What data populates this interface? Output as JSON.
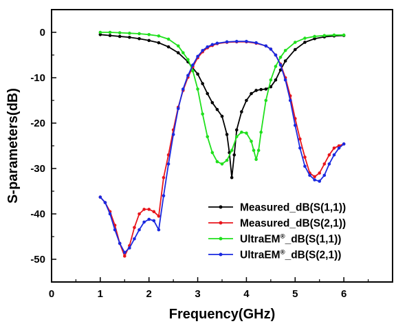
{
  "chart_data": {
    "type": "line",
    "title": "",
    "xlabel": "Frequency(GHz)",
    "ylabel": "S-parameters(dB)",
    "xlim": [
      0,
      7
    ],
    "ylim": [
      -55,
      5
    ],
    "xticks": [
      0,
      1,
      2,
      3,
      4,
      5,
      6
    ],
    "yticks": [
      0,
      -10,
      -20,
      -30,
      -40,
      -50
    ],
    "grid": false,
    "legend_position": "bottom-right",
    "series": [
      {
        "name_parts": [
          "Measured",
          "_dB(S(1,1))"
        ],
        "color": "#000000",
        "x": [
          1.0,
          1.2,
          1.4,
          1.6,
          1.8,
          2.0,
          2.2,
          2.4,
          2.6,
          2.8,
          3.0,
          3.1,
          3.2,
          3.3,
          3.4,
          3.5,
          3.6,
          3.65,
          3.7,
          3.75,
          3.8,
          3.9,
          4.0,
          4.1,
          4.2,
          4.3,
          4.4,
          4.5,
          4.6,
          4.7,
          4.8,
          5.0,
          5.2,
          5.4,
          5.6,
          5.8,
          6.0
        ],
        "y": [
          -0.5,
          -0.7,
          -0.9,
          -1.1,
          -1.4,
          -1.8,
          -2.3,
          -3.2,
          -4.5,
          -6.5,
          -9.2,
          -11.3,
          -13.5,
          -15.5,
          -17.0,
          -18.5,
          -22.5,
          -26.5,
          -32.0,
          -27.0,
          -21.5,
          -17.5,
          -15.0,
          -13.5,
          -12.8,
          -12.6,
          -12.5,
          -12.0,
          -10.5,
          -8.3,
          -6.3,
          -3.8,
          -2.2,
          -1.4,
          -1.0,
          -0.8,
          -0.7
        ]
      },
      {
        "name_parts": [
          "Measured",
          "_dB(S(2,1))"
        ],
        "color": "#e8141b",
        "x": [
          1.0,
          1.1,
          1.2,
          1.3,
          1.4,
          1.5,
          1.6,
          1.7,
          1.8,
          1.9,
          2.0,
          2.1,
          2.2,
          2.3,
          2.4,
          2.5,
          2.6,
          2.7,
          2.8,
          2.9,
          3.0,
          3.1,
          3.2,
          3.3,
          3.4,
          3.6,
          3.8,
          4.0,
          4.2,
          4.4,
          4.5,
          4.6,
          4.7,
          4.8,
          4.9,
          5.0,
          5.1,
          5.2,
          5.3,
          5.4,
          5.5,
          5.6,
          5.7,
          5.8,
          5.9,
          6.0
        ],
        "y": [
          -36.3,
          -37.5,
          -39.5,
          -42.5,
          -46.5,
          -49.3,
          -47.0,
          -43.0,
          -40.0,
          -39.0,
          -39.0,
          -39.5,
          -40.5,
          -32.0,
          -27.0,
          -21.5,
          -16.5,
          -12.8,
          -9.9,
          -7.6,
          -5.6,
          -4.3,
          -3.4,
          -2.9,
          -2.5,
          -2.2,
          -2.1,
          -2.1,
          -2.4,
          -3.0,
          -3.7,
          -5.0,
          -7.0,
          -10.0,
          -14.0,
          -19.0,
          -23.5,
          -27.5,
          -31.0,
          -31.8,
          -31.0,
          -29.0,
          -27.0,
          -25.5,
          -25.0,
          -24.6
        ]
      },
      {
        "name_parts": [
          "UltraEM",
          "®",
          "_dB(S(1,1))"
        ],
        "color": "#1fe01c",
        "x": [
          1.0,
          1.2,
          1.4,
          1.6,
          1.8,
          2.0,
          2.2,
          2.4,
          2.6,
          2.7,
          2.8,
          2.9,
          3.0,
          3.1,
          3.2,
          3.3,
          3.4,
          3.5,
          3.6,
          3.7,
          3.8,
          3.9,
          4.0,
          4.1,
          4.15,
          4.2,
          4.25,
          4.3,
          4.4,
          4.5,
          4.6,
          4.7,
          4.8,
          5.0,
          5.2,
          5.4,
          5.6,
          5.8,
          6.0
        ],
        "y": [
          0,
          0,
          -0.1,
          -0.2,
          -0.3,
          -0.5,
          -0.8,
          -1.5,
          -3.0,
          -4.5,
          -6.0,
          -8.5,
          -12.5,
          -18.0,
          -23.0,
          -26.5,
          -28.5,
          -29.0,
          -28.2,
          -26.0,
          -23.0,
          -22.0,
          -22.2,
          -24.0,
          -26.0,
          -28.0,
          -26.0,
          -22.0,
          -15.0,
          -10.5,
          -7.5,
          -5.5,
          -4.0,
          -2.2,
          -1.3,
          -0.9,
          -0.7,
          -0.6,
          -0.6
        ]
      },
      {
        "name_parts": [
          "UltraEM",
          "®",
          "_dB(S(2,1))"
        ],
        "color": "#1a29e0",
        "x": [
          1.0,
          1.1,
          1.2,
          1.3,
          1.4,
          1.5,
          1.6,
          1.7,
          1.8,
          1.9,
          2.0,
          2.1,
          2.2,
          2.3,
          2.4,
          2.5,
          2.6,
          2.7,
          2.8,
          2.9,
          3.0,
          3.1,
          3.2,
          3.3,
          3.4,
          3.6,
          3.8,
          4.0,
          4.2,
          4.4,
          4.5,
          4.6,
          4.7,
          4.8,
          4.9,
          5.0,
          5.1,
          5.2,
          5.3,
          5.4,
          5.5,
          5.6,
          5.7,
          5.8,
          5.9,
          6.0
        ],
        "y": [
          -36.3,
          -37.5,
          -40.0,
          -43.5,
          -46.5,
          -48.5,
          -47.5,
          -45.5,
          -43.5,
          -41.8,
          -41.2,
          -41.5,
          -43.5,
          -36.0,
          -29.0,
          -22.5,
          -16.8,
          -12.5,
          -9.5,
          -7.2,
          -5.3,
          -4.0,
          -3.2,
          -2.7,
          -2.4,
          -2.1,
          -2.0,
          -2.0,
          -2.3,
          -3.0,
          -3.7,
          -5.0,
          -7.2,
          -10.5,
          -15.0,
          -20.5,
          -25.5,
          -29.5,
          -31.5,
          -32.5,
          -32.8,
          -31.5,
          -29.0,
          -27.0,
          -25.5,
          -24.6
        ]
      }
    ]
  }
}
